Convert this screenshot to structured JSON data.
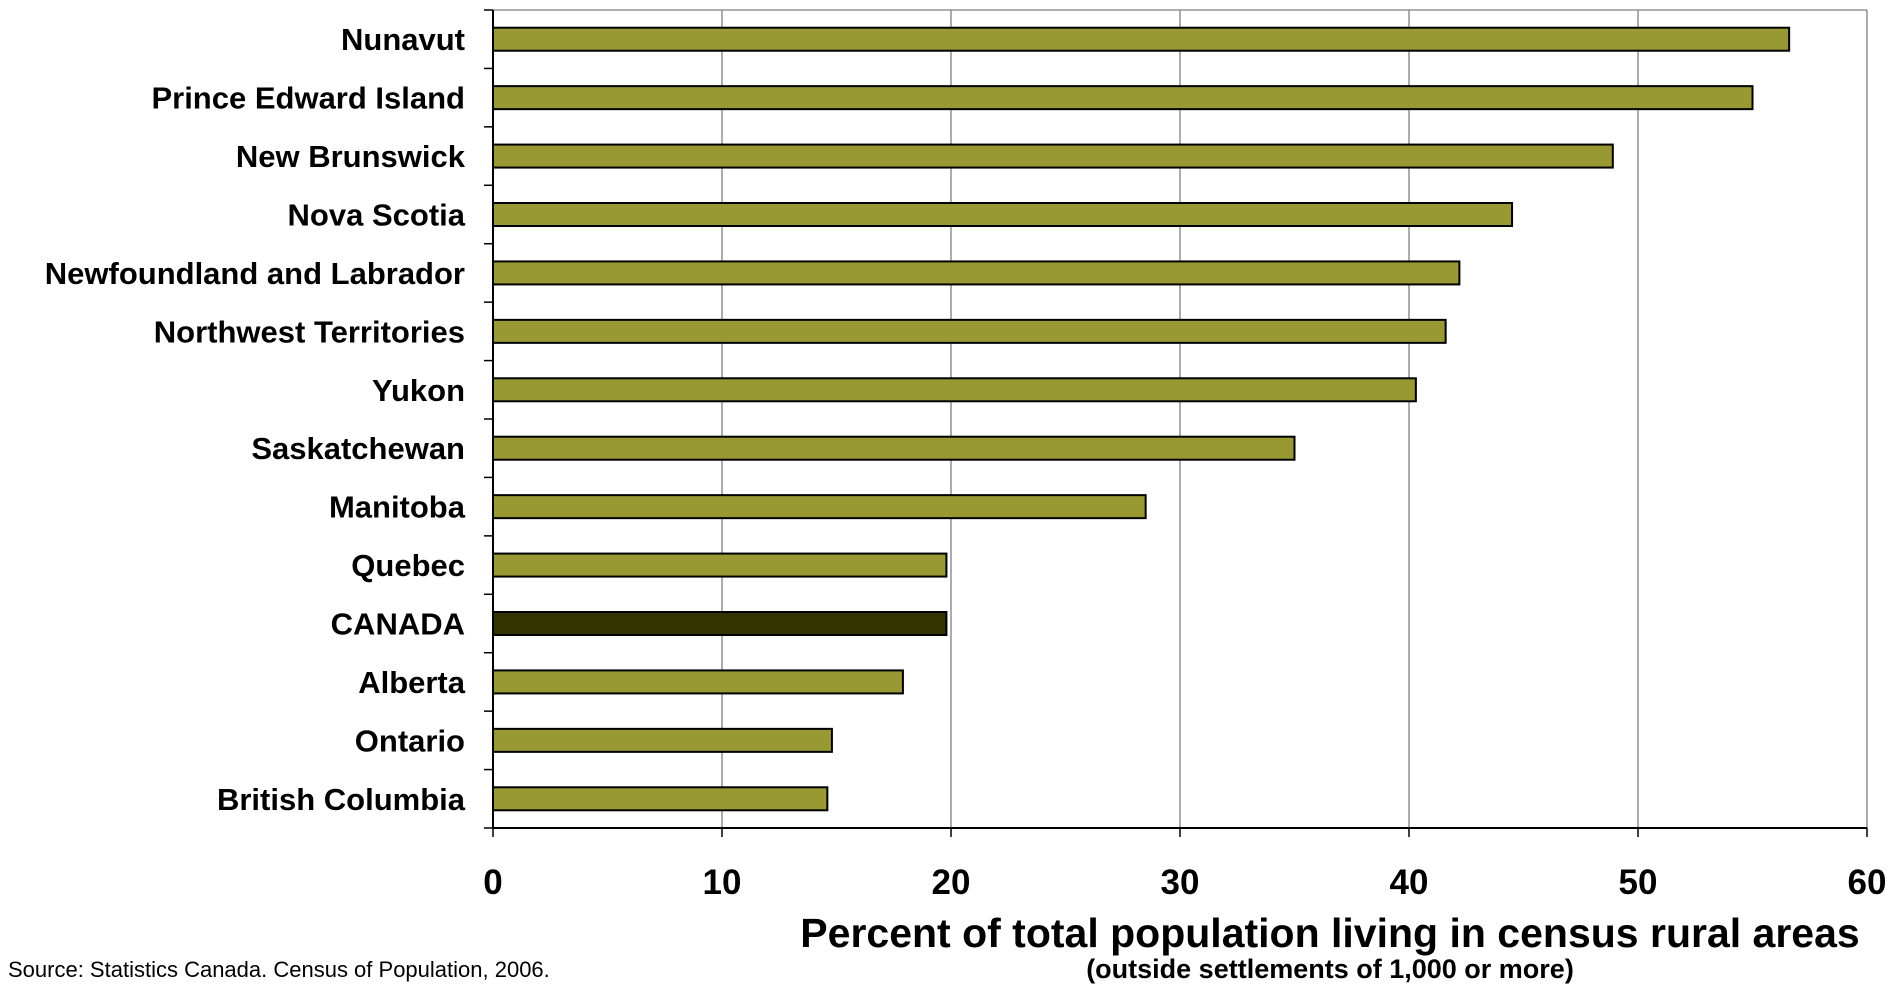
{
  "chart_data": {
    "type": "bar",
    "orientation": "horizontal",
    "categories": [
      "Nunavut",
      "Prince Edward Island",
      "New Brunswick",
      "Nova Scotia",
      "Newfoundland and Labrador",
      "Northwest Territories",
      "Yukon",
      "Saskatchewan",
      "Manitoba",
      "Quebec",
      "CANADA",
      "Alberta",
      "Ontario",
      "British Columbia"
    ],
    "values": [
      56.6,
      55.0,
      48.9,
      44.5,
      42.2,
      41.6,
      40.3,
      35.0,
      28.5,
      19.8,
      19.8,
      17.9,
      14.8,
      14.6
    ],
    "highlight": "CANADA",
    "xlim": [
      0,
      60
    ],
    "x_ticks": [
      "0",
      "10",
      "20",
      "30",
      "40",
      "50",
      "60"
    ],
    "xlabel": "Percent of total population living in census rural areas",
    "xlabel_sub": "(outside settlements of 1,000 or more)",
    "ylabel": "",
    "grid": true,
    "colors": {
      "bar": "#999933",
      "highlight_bar": "#333300",
      "bar_border": "#000000",
      "grid": "#808080"
    }
  },
  "source_note": "Source: Statistics Canada. Census of Population, 2006."
}
